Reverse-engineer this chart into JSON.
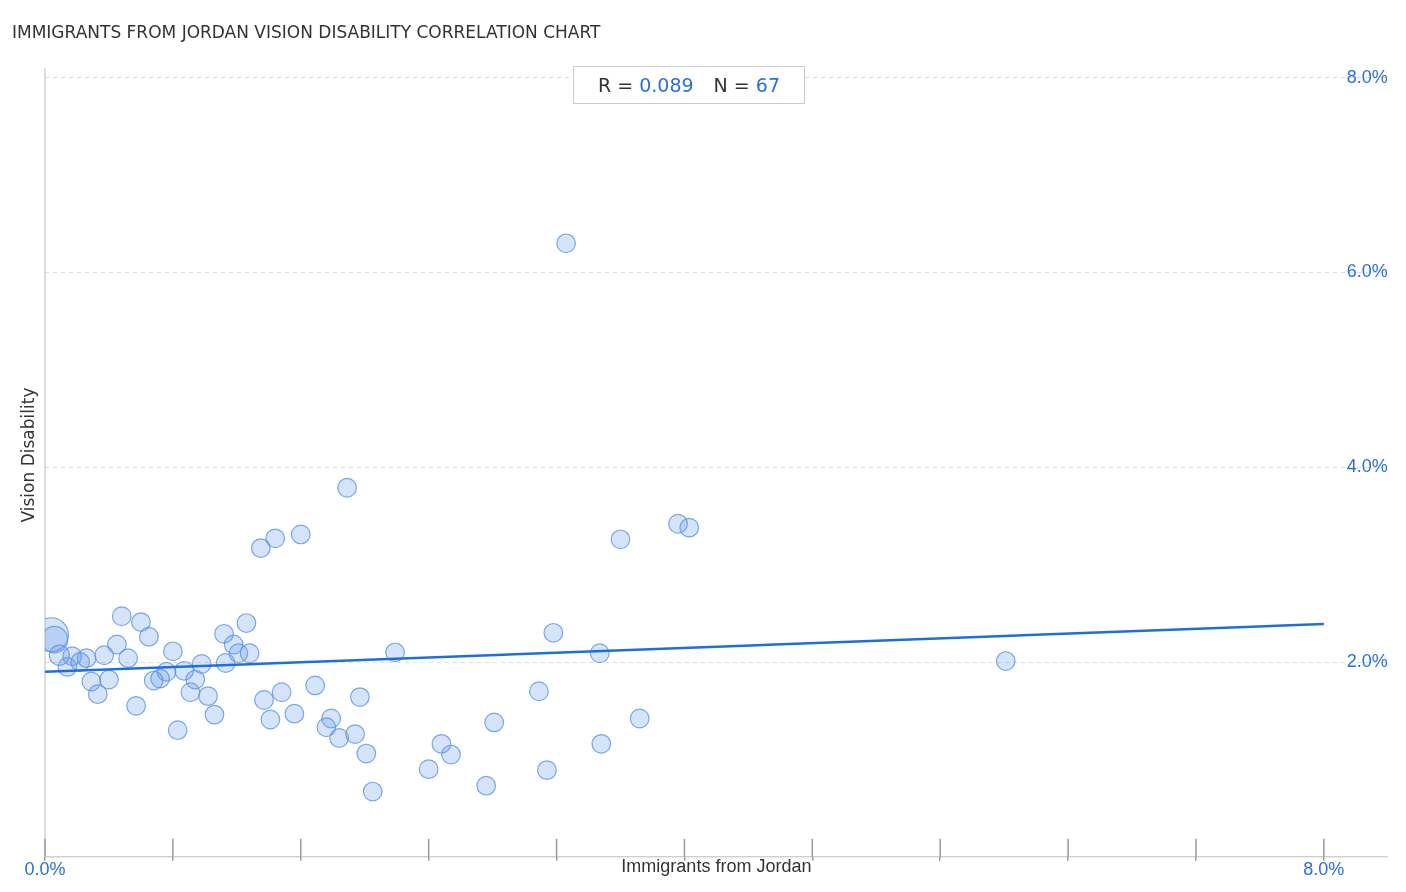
{
  "chart_data": {
    "type": "bubble",
    "title": "IMMIGRANTS FROM JORDAN VISION DISABILITY CORRELATION CHART",
    "xlabel": "Immigrants from Jordan",
    "ylabel": "Vision Disability",
    "annotations": [
      "R = 0.089",
      "N = 67"
    ],
    "xlim": [
      0,
      8.4
    ],
    "ylim": [
      0,
      8.1
    ],
    "xticks": [
      {
        "value": 0,
        "label": "0.0%"
      },
      {
        "value": 0.8,
        "label": null
      },
      {
        "value": 1.6,
        "label": null
      },
      {
        "value": 2.4,
        "label": null
      },
      {
        "value": 3.2,
        "label": null
      },
      {
        "value": 4,
        "label": null
      },
      {
        "value": 4.8,
        "label": null
      },
      {
        "value": 5.6,
        "label": null
      },
      {
        "value": 6.4,
        "label": null
      },
      {
        "value": 7.2,
        "label": null
      },
      {
        "value": 8,
        "label": "8.0%"
      }
    ],
    "yticks": [
      {
        "value": 2,
        "label": "2.0%"
      },
      {
        "value": 4,
        "label": "4.0%"
      },
      {
        "value": 6,
        "label": "6.0%"
      },
      {
        "value": 8,
        "label": "8.0%"
      }
    ],
    "grid": "y",
    "legend": false,
    "series": [
      {
        "color": "#5b93e6",
        "x": [
          0.04,
          0.06,
          0.09,
          0.14,
          0.17,
          0.22,
          0.26,
          0.29,
          0.33,
          0.37,
          0.4,
          0.45,
          0.48,
          0.52,
          0.57,
          0.6,
          0.65,
          0.68,
          0.72,
          0.76,
          0.8,
          0.83,
          0.87,
          0.91,
          0.94,
          0.98,
          1.02,
          1.06,
          1.12,
          1.13,
          1.18,
          1.21,
          1.26,
          1.28,
          1.35,
          1.37,
          1.41,
          1.44,
          1.48,
          1.56,
          1.6,
          1.69,
          1.76,
          1.79,
          1.84,
          1.89,
          1.94,
          1.97,
          2.01,
          2.05,
          2.19,
          2.4,
          2.48,
          2.54,
          2.76,
          2.81,
          3.09,
          3.14,
          3.18,
          3.26,
          3.47,
          3.48,
          3.6,
          3.72,
          3.96,
          4.03,
          6.01
        ],
        "values": [
          2.28,
          2.23,
          2.07,
          1.95,
          2.06,
          2.0,
          2.04,
          1.8,
          1.67,
          2.07,
          1.82,
          2.18,
          2.47,
          2.04,
          1.55,
          2.41,
          2.26,
          1.81,
          1.83,
          1.9,
          2.11,
          1.3,
          1.91,
          1.69,
          1.82,
          1.98,
          1.65,
          1.46,
          2.29,
          1.99,
          2.18,
          2.09,
          2.4,
          2.09,
          3.17,
          1.61,
          1.41,
          3.27,
          1.69,
          1.47,
          3.31,
          1.76,
          1.33,
          1.42,
          1.22,
          3.79,
          1.26,
          1.64,
          1.06,
          0.67,
          2.1,
          0.9,
          1.16,
          1.05,
          0.73,
          1.38,
          1.7,
          0.89,
          2.3,
          6.3,
          2.09,
          1.16,
          3.26,
          1.42,
          3.42,
          3.38,
          2.01
        ],
        "sizes": [
          1,
          0.6,
          0.35,
          0.3,
          0.3,
          0.3,
          0.3,
          0.3,
          0.3,
          0.3,
          0.3,
          0.3,
          0.3,
          0.3,
          0.3,
          0.3,
          0.3,
          0.3,
          0.3,
          0.3,
          0.3,
          0.3,
          0.3,
          0.3,
          0.3,
          0.3,
          0.3,
          0.3,
          0.3,
          0.3,
          0.3,
          0.3,
          0.3,
          0.3,
          0.3,
          0.3,
          0.3,
          0.3,
          0.3,
          0.3,
          0.3,
          0.3,
          0.3,
          0.3,
          0.3,
          0.3,
          0.3,
          0.3,
          0.3,
          0.3,
          0.3,
          0.3,
          0.3,
          0.3,
          0.3,
          0.3,
          0.3,
          0.3,
          0.3,
          0.3,
          0.3,
          0.3,
          0.3,
          0.3,
          0.3,
          0.3,
          0.3
        ]
      },
      {
        "type": "line",
        "color": "#1f6fd6",
        "x": [
          0,
          8
        ],
        "values": [
          1.9,
          2.39
        ]
      }
    ]
  }
}
